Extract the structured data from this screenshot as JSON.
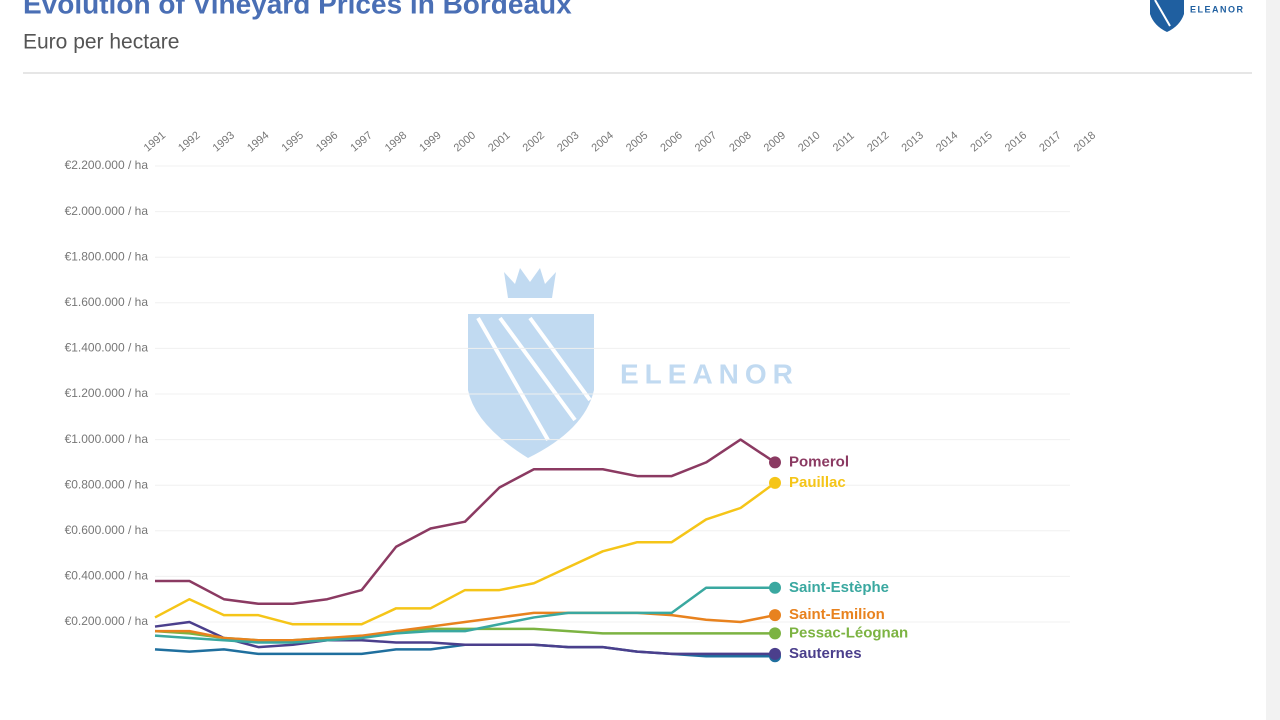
{
  "chart_data": {
    "type": "line",
    "title": "Evolution of Vineyard Prices in Bordeaux",
    "subtitle": "Euro per hectare",
    "logo_text": "ELEANOR",
    "watermark": "ELEANOR",
    "x": [
      1991,
      1992,
      1993,
      1994,
      1995,
      1996,
      1997,
      1998,
      1999,
      2000,
      2001,
      2002,
      2003,
      2004,
      2005,
      2006,
      2007,
      2008,
      2009
    ],
    "xlim": [
      1991,
      2018
    ],
    "xticks": [
      1991,
      1992,
      1993,
      1994,
      1995,
      1996,
      1997,
      1998,
      1999,
      2000,
      2001,
      2002,
      2003,
      2004,
      2005,
      2006,
      2007,
      2008,
      2009,
      2010,
      2011,
      2012,
      2013,
      2014,
      2015,
      2016,
      2017,
      2018
    ],
    "ylim": [
      0,
      2200000
    ],
    "yticks": [
      {
        "value": 200000,
        "label": "€0.200.000 / ha"
      },
      {
        "value": 400000,
        "label": "€0.400.000 / ha"
      },
      {
        "value": 600000,
        "label": "€0.600.000 / ha"
      },
      {
        "value": 800000,
        "label": "€0.800.000 / ha"
      },
      {
        "value": 1000000,
        "label": "€1.000.000 / ha"
      },
      {
        "value": 1200000,
        "label": "€1.200.000 / ha"
      },
      {
        "value": 1400000,
        "label": "€1.400.000 / ha"
      },
      {
        "value": 1600000,
        "label": "€1.600.000 / ha"
      },
      {
        "value": 1800000,
        "label": "€1.800.000 / ha"
      },
      {
        "value": 2000000,
        "label": "€2.000.000 / ha"
      },
      {
        "value": 2200000,
        "label": "€2.200.000 / ha"
      }
    ],
    "grid": true,
    "series": [
      {
        "color": "#1f6f9e",
        "values": [
          80000,
          70000,
          80000,
          60000,
          60000,
          60000,
          60000,
          80000,
          80000,
          100000,
          100000,
          100000,
          90000,
          90000,
          70000,
          60000,
          50000,
          50000,
          50000
        ]
      },
      {
        "name": "Sauternes",
        "color": "#4b3f8c",
        "values": [
          180000,
          200000,
          130000,
          90000,
          100000,
          120000,
          120000,
          110000,
          110000,
          100000,
          100000,
          100000,
          90000,
          90000,
          70000,
          60000,
          60000,
          60000,
          60000
        ]
      },
      {
        "name": "Pessac-Léognan",
        "color": "#7cb342",
        "values": [
          160000,
          150000,
          130000,
          120000,
          120000,
          130000,
          130000,
          160000,
          170000,
          170000,
          170000,
          170000,
          160000,
          150000,
          150000,
          150000,
          150000,
          150000,
          150000
        ]
      },
      {
        "name": "Saint-Emilion",
        "color": "#e8821e",
        "values": [
          160000,
          160000,
          130000,
          120000,
          120000,
          130000,
          140000,
          160000,
          180000,
          200000,
          220000,
          240000,
          240000,
          240000,
          240000,
          230000,
          210000,
          200000,
          230000
        ]
      },
      {
        "name": "Saint-Estèphe",
        "color": "#3aa8a0",
        "values": [
          140000,
          130000,
          120000,
          110000,
          110000,
          120000,
          130000,
          150000,
          160000,
          160000,
          190000,
          220000,
          240000,
          240000,
          240000,
          240000,
          350000,
          350000,
          350000
        ]
      },
      {
        "name": "Pauillac",
        "color": "#f5c518",
        "values": [
          220000,
          300000,
          230000,
          230000,
          190000,
          190000,
          190000,
          260000,
          260000,
          340000,
          340000,
          370000,
          440000,
          510000,
          550000,
          550000,
          650000,
          700000,
          810000
        ]
      },
      {
        "name": "Pomerol",
        "color": "#8b3a62",
        "values": [
          380000,
          380000,
          300000,
          280000,
          280000,
          300000,
          340000,
          530000,
          610000,
          640000,
          790000,
          870000,
          870000,
          870000,
          840000,
          840000,
          900000,
          1000000,
          900000
        ]
      }
    ]
  }
}
